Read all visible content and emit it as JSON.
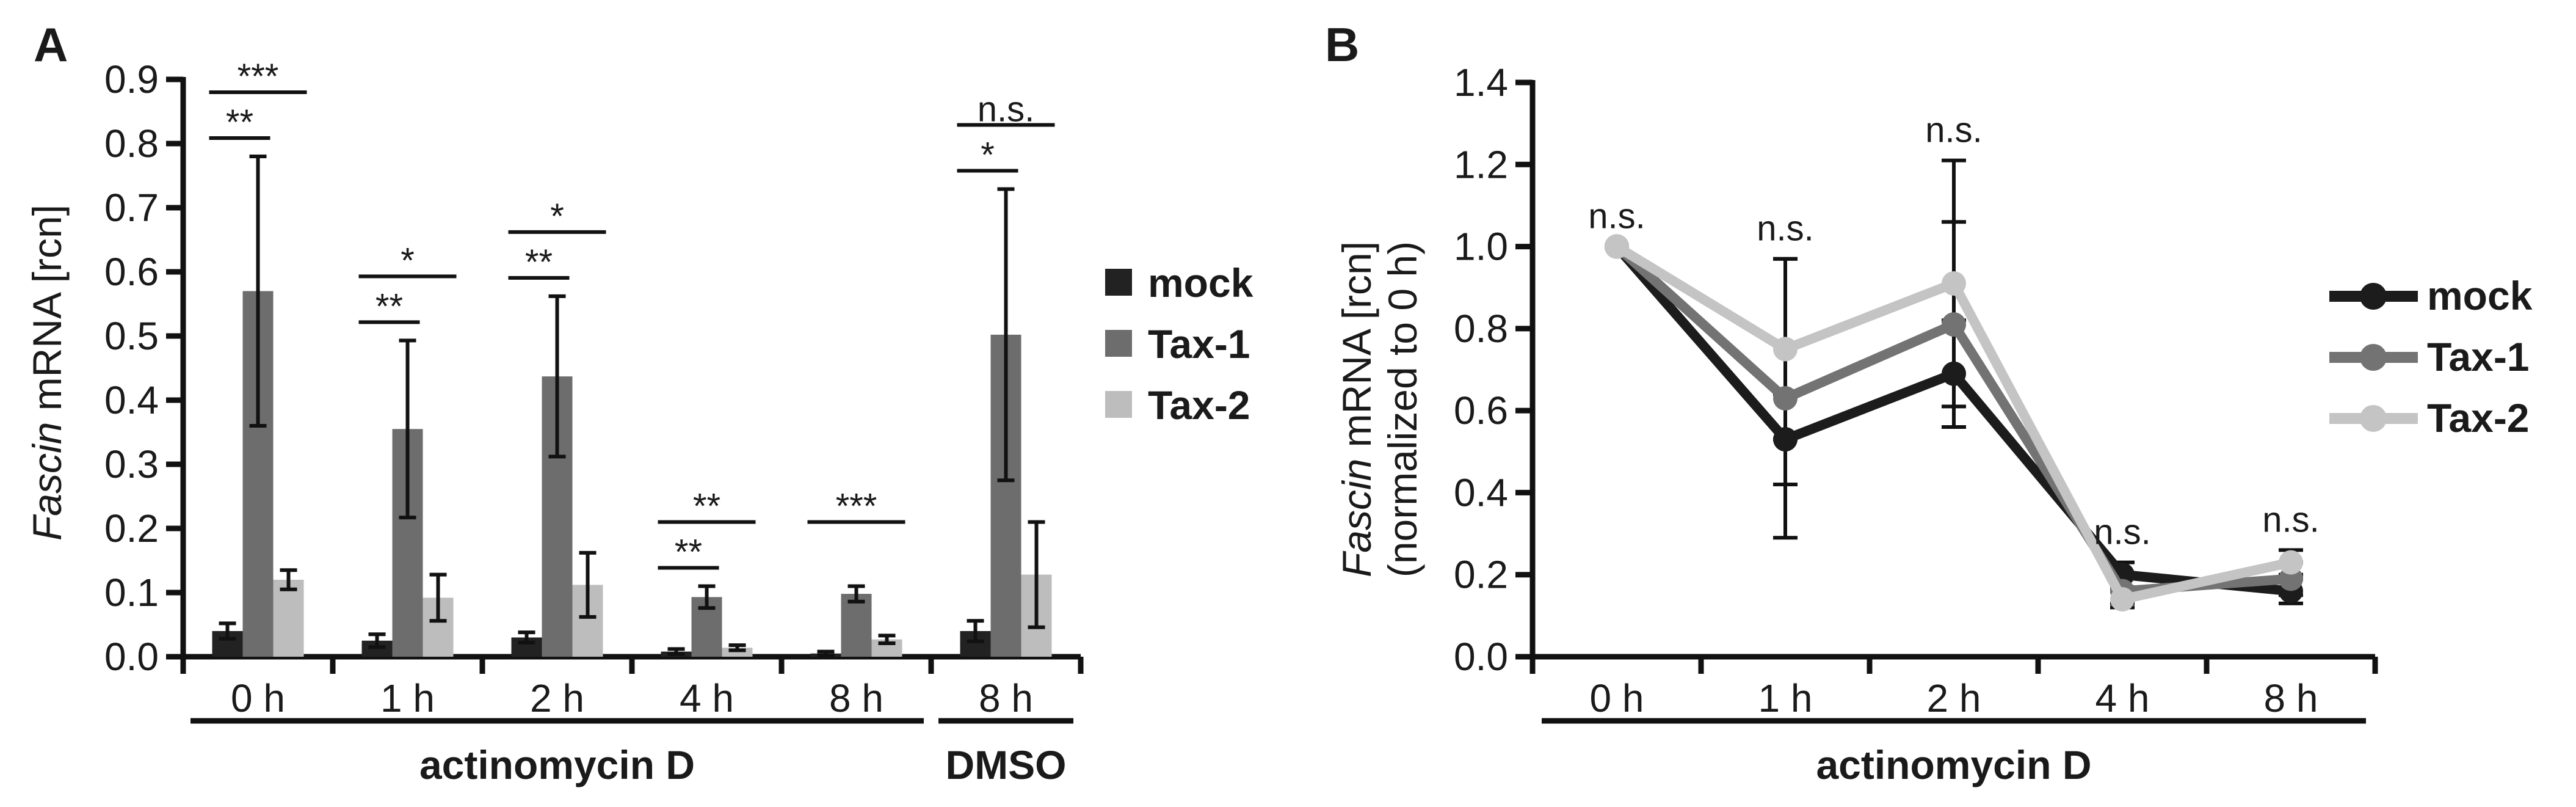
{
  "panels": {
    "a_letter": "A",
    "b_letter": "B"
  },
  "chart_data": [
    {
      "type": "bar",
      "panel": "A",
      "ylabel_italic": "Fascin",
      "ylabel_rest": " mRNA [rcn]",
      "ylim": [
        0,
        0.9
      ],
      "yticks": [
        "0.0",
        "0.1",
        "0.2",
        "0.3",
        "0.4",
        "0.5",
        "0.6",
        "0.7",
        "0.8",
        "0.9"
      ],
      "categories": [
        "0 h",
        "1 h",
        "2 h",
        "4 h",
        "8 h",
        "8 h"
      ],
      "groups": [
        {
          "label": "actinomycin D",
          "span": [
            0,
            4
          ]
        },
        {
          "label": "DMSO",
          "span": [
            5,
            5
          ]
        }
      ],
      "series": [
        {
          "name": "mock",
          "color": "#222222",
          "values": [
            0.04,
            0.025,
            0.03,
            0.008,
            0.005,
            0.04
          ],
          "errors": [
            0.012,
            0.01,
            0.008,
            0.004,
            0.003,
            0.016
          ]
        },
        {
          "name": "Tax-1",
          "color": "#6d6d6d",
          "values": [
            0.57,
            0.355,
            0.437,
            0.093,
            0.098,
            0.502
          ],
          "errors": [
            0.21,
            0.138,
            0.125,
            0.017,
            0.012,
            0.227
          ]
        },
        {
          "name": "Tax-2",
          "color": "#bdbdbd",
          "values": [
            0.12,
            0.092,
            0.112,
            0.014,
            0.027,
            0.128
          ],
          "errors": [
            0.015,
            0.036,
            0.05,
            0.004,
            0.006,
            0.082
          ]
        }
      ],
      "significance": [
        {
          "category": 0,
          "lower": "**",
          "upper": "***"
        },
        {
          "category": 1,
          "lower": "**",
          "upper": "*"
        },
        {
          "category": 2,
          "lower": "**",
          "upper": "*"
        },
        {
          "category": 3,
          "lower": "**",
          "upper": "**"
        },
        {
          "category": 4,
          "lower": "",
          "upper": "***"
        },
        {
          "category": 5,
          "lower": "*",
          "upper": "n.s."
        }
      ],
      "legend": {
        "placement": "right",
        "items": [
          "mock",
          "Tax-1",
          "Tax-2"
        ]
      }
    },
    {
      "type": "line",
      "panel": "B",
      "ylabel_italic": "Fascin",
      "ylabel_rest": " mRNA [rcn]",
      "ylabel_line2": "(normalized to 0 h)",
      "ylim": [
        0,
        1.4
      ],
      "yticks": [
        "0.0",
        "0.2",
        "0.4",
        "0.6",
        "0.8",
        "1.0",
        "1.2",
        "1.4"
      ],
      "x": [
        "0 h",
        "1 h",
        "2 h",
        "4 h",
        "8 h"
      ],
      "xgroup": "actinomycin D",
      "series": [
        {
          "name": "mock",
          "color": "#1c1c1c",
          "values": [
            1.0,
            0.53,
            0.69,
            0.2,
            0.16
          ],
          "errors": [
            0.0,
            0.11,
            0.13,
            0.03,
            0.03
          ]
        },
        {
          "name": "Tax-1",
          "color": "#737373",
          "values": [
            1.0,
            0.63,
            0.81,
            0.16,
            0.19
          ],
          "errors": [
            0.0,
            0.34,
            0.25,
            0.03,
            0.04
          ]
        },
        {
          "name": "Tax-2",
          "color": "#c4c4c4",
          "values": [
            1.0,
            0.75,
            0.91,
            0.14,
            0.23
          ],
          "errors": [
            0.0,
            0.22,
            0.3,
            0.02,
            0.03
          ]
        }
      ],
      "annotations": [
        "n.s.",
        "n.s.",
        "n.s.",
        "n.s.",
        "n.s."
      ],
      "legend": {
        "placement": "right",
        "items": [
          "mock",
          "Tax-1",
          "Tax-2"
        ]
      }
    }
  ]
}
